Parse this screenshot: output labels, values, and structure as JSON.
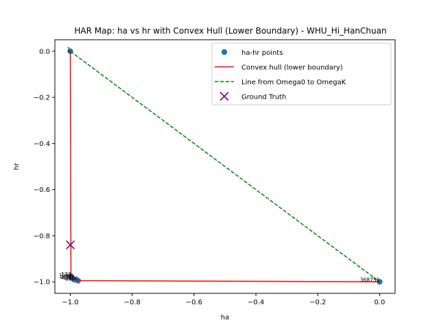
{
  "chart_data": {
    "type": "scatter",
    "title": "HAR Map: ha vs hr with Convex Hull (Lower Boundary) - WHU_Hi_HanChuan",
    "xlabel": "ha",
    "ylabel": "hr",
    "xlim": [
      -1.05,
      0.05
    ],
    "ylim": [
      -1.05,
      0.05
    ],
    "xticks": [
      -1.0,
      -0.8,
      -0.6,
      -0.4,
      -0.2,
      0.0
    ],
    "xtick_labels": [
      "−1.0",
      "−0.8",
      "−0.6",
      "−0.4",
      "−0.2",
      "0.0"
    ],
    "yticks": [
      0.0,
      -0.2,
      -0.4,
      -0.6,
      -0.8,
      -1.0
    ],
    "ytick_labels": [
      "0.0",
      "−0.2",
      "−0.4",
      "−0.6",
      "−0.8",
      "−1.0"
    ],
    "grid": false,
    "legend_position": "top-right",
    "series": [
      {
        "name": "ha-hr points",
        "kind": "scatter",
        "color": "#1f77b4",
        "points": [
          {
            "x": -1.0,
            "y": 0.0,
            "label": "1"
          },
          {
            "x": -0.998,
            "y": -0.975,
            "label": "133"
          },
          {
            "x": -0.995,
            "y": -0.982,
            "label": "1280"
          },
          {
            "x": -0.99,
            "y": -0.988,
            "label": "2560"
          },
          {
            "x": -0.985,
            "y": -0.991,
            "label": "4096"
          },
          {
            "x": -0.975,
            "y": -0.995,
            "label": "6000"
          },
          {
            "x": 0.0,
            "y": -1.0,
            "label": "368751"
          }
        ]
      },
      {
        "name": "Convex hull (lower boundary)",
        "kind": "line",
        "color": "#ff0000",
        "dash": "solid",
        "points": [
          {
            "x": -1.0,
            "y": 0.0
          },
          {
            "x": -0.998,
            "y": -0.975
          },
          {
            "x": -0.975,
            "y": -0.995
          },
          {
            "x": 0.0,
            "y": -1.0
          }
        ]
      },
      {
        "name": "Line from Omega0 to OmegaK",
        "kind": "line",
        "color": "#008000",
        "dash": "dashed",
        "points": [
          {
            "x": -1.0,
            "y": 0.0
          },
          {
            "x": 0.0,
            "y": -1.0
          }
        ]
      },
      {
        "name": "Ground Truth",
        "kind": "marker-x",
        "color": "#800080",
        "points": [
          {
            "x": -1.0,
            "y": -0.84
          }
        ]
      }
    ]
  }
}
